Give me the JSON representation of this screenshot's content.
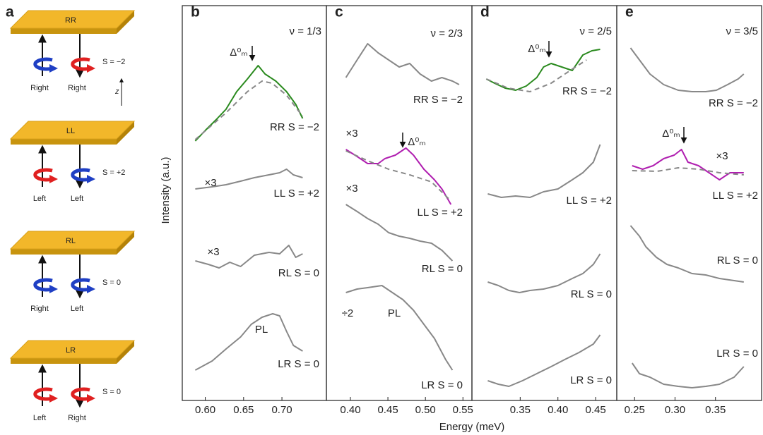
{
  "diagram": {
    "panel_label": "a",
    "z_label": "z",
    "plates": [
      {
        "label": "RR",
        "s": "S = −2",
        "arrows": [
          {
            "label": "Right",
            "color": "#1f3fc4"
          },
          {
            "label": "Right",
            "color": "#e02020"
          }
        ]
      },
      {
        "label": "LL",
        "s": "S = +2",
        "arrows": [
          {
            "label": "Left",
            "color": "#e02020"
          },
          {
            "label": "Left",
            "color": "#1f3fc4"
          }
        ]
      },
      {
        "label": "RL",
        "s": "S = 0",
        "arrows": [
          {
            "label": "Right",
            "color": "#1f3fc4"
          },
          {
            "label": "Left",
            "color": "#1f3fc4"
          }
        ]
      },
      {
        "label": "LR",
        "s": "S = 0",
        "arrows": [
          {
            "label": "Left",
            "color": "#e02020"
          },
          {
            "label": "Right",
            "color": "#e02020"
          }
        ]
      }
    ]
  },
  "figure": {
    "xlabel": "Energy (meV)",
    "ylabel": "Intensity (a.u.)"
  },
  "chart_data": [
    {
      "type": "line",
      "panel_label": "b",
      "xlim": [
        0.57,
        0.758
      ],
      "ylim": [
        0,
        56
      ],
      "xticks": [
        {
          "value": 0.6,
          "label": "0.60"
        },
        {
          "value": 0.65,
          "label": "0.65"
        },
        {
          "value": 0.7,
          "label": "0.70"
        }
      ],
      "annotations": [
        "ν = 1/3",
        "Δ⁰ₘ",
        "×3",
        "×3",
        "PL"
      ],
      "series": [
        {
          "name": "RR S = −2",
          "color": "#2a8a1e",
          "x": [
            0.587,
            0.6,
            0.614,
            0.627,
            0.641,
            0.655,
            0.669,
            0.678,
            0.692,
            0.706,
            0.718,
            0.727
          ],
          "values": [
            36.8,
            38.3,
            39.8,
            41.3,
            43.8,
            45.6,
            47.5,
            46.3,
            45.3,
            43.8,
            42.0,
            40.0
          ]
        },
        {
          "color": "#888888",
          "dashed": true,
          "x": [
            0.587,
            0.627,
            0.655,
            0.674,
            0.687,
            0.706,
            0.727
          ],
          "values": [
            37.0,
            40.8,
            43.8,
            45.3,
            45.0,
            43.3,
            40.3
          ]
        },
        {
          "name": "LL S = +2",
          "color": "#888888",
          "x": [
            0.587,
            0.609,
            0.627,
            0.646,
            0.664,
            0.683,
            0.697,
            0.706,
            0.715,
            0.727
          ],
          "values": [
            30.0,
            30.3,
            30.6,
            31.1,
            31.6,
            32.0,
            32.3,
            32.8,
            32.0,
            31.6
          ]
        },
        {
          "name": "RL S = 0",
          "color": "#888888",
          "x": [
            0.587,
            0.604,
            0.618,
            0.632,
            0.646,
            0.664,
            0.683,
            0.697,
            0.709,
            0.718,
            0.727
          ],
          "values": [
            19.8,
            19.3,
            18.8,
            19.6,
            19.0,
            20.6,
            21.0,
            20.8,
            22.0,
            20.3,
            20.8
          ]
        },
        {
          "name": "LR S = 0",
          "color": "#888888",
          "x": [
            0.587,
            0.609,
            0.627,
            0.646,
            0.66,
            0.674,
            0.688,
            0.697,
            0.706,
            0.715,
            0.727
          ],
          "values": [
            4.3,
            5.6,
            7.3,
            9.0,
            10.8,
            11.8,
            12.3,
            12.0,
            9.8,
            7.8,
            7.0
          ]
        }
      ]
    },
    {
      "type": "line",
      "panel_label": "c",
      "xlim": [
        0.368,
        0.562
      ],
      "ylim": [
        0,
        56
      ],
      "xticks": [
        {
          "value": 0.4,
          "label": "0.40"
        },
        {
          "value": 0.45,
          "label": "0.45"
        },
        {
          "value": 0.5,
          "label": "0.50"
        },
        {
          "value": 0.55,
          "label": "0.55"
        }
      ],
      "annotations": [
        "ν = 2/3",
        "×3",
        "Δ⁰ₘ",
        "×3",
        "÷2",
        "PL"
      ],
      "series": [
        {
          "name": "RR S = −2",
          "color": "#888888",
          "x": [
            0.394,
            0.409,
            0.423,
            0.437,
            0.451,
            0.465,
            0.479,
            0.493,
            0.508,
            0.522,
            0.536,
            0.545
          ],
          "values": [
            45.8,
            48.3,
            50.6,
            49.3,
            48.3,
            47.3,
            47.8,
            46.3,
            45.3,
            45.8,
            45.3,
            44.8
          ]
        },
        {
          "name": "LL S = +2",
          "color": "#b01fb0",
          "x": [
            0.394,
            0.409,
            0.423,
            0.437,
            0.446,
            0.46,
            0.474,
            0.484,
            0.498,
            0.512,
            0.522,
            0.534
          ],
          "values": [
            35.6,
            34.6,
            33.6,
            33.6,
            34.3,
            34.8,
            35.8,
            34.8,
            32.8,
            31.3,
            30.0,
            27.8
          ]
        },
        {
          "color": "#888888",
          "dashed": true,
          "x": [
            0.394,
            0.423,
            0.451,
            0.479,
            0.508,
            0.534
          ],
          "values": [
            35.4,
            34.0,
            32.8,
            32.0,
            31.0,
            28.3
          ]
        },
        {
          "name": "RL S = 0",
          "color": "#888888",
          "x": [
            0.394,
            0.409,
            0.423,
            0.437,
            0.451,
            0.465,
            0.479,
            0.493,
            0.508,
            0.522,
            0.536
          ],
          "values": [
            27.8,
            26.8,
            25.8,
            25.0,
            23.8,
            23.3,
            23.0,
            22.6,
            22.3,
            21.3,
            19.8
          ]
        },
        {
          "name": "LR S = 0",
          "color": "#888888",
          "x": [
            0.394,
            0.409,
            0.423,
            0.442,
            0.456,
            0.47,
            0.484,
            0.498,
            0.512,
            0.527,
            0.536
          ],
          "values": [
            15.3,
            15.8,
            16.0,
            16.3,
            15.3,
            14.3,
            12.8,
            10.8,
            8.8,
            5.8,
            4.3
          ]
        }
      ]
    },
    {
      "type": "line",
      "panel_label": "d",
      "xlim": [
        0.286,
        0.478
      ],
      "ylim": [
        0,
        56
      ],
      "xticks": [
        0.35,
        {
          "value": 0.4,
          "label": "0.40"
        },
        0.45
      ],
      "annotations": [
        "ν = 2/5",
        "Δ⁰ₘ"
      ],
      "series": [
        {
          "name": "RR S = −2",
          "color": "#2a8a1e",
          "x": [
            0.305,
            0.316,
            0.33,
            0.344,
            0.358,
            0.372,
            0.381,
            0.391,
            0.405,
            0.419,
            0.433,
            0.445,
            0.456
          ],
          "values": [
            45.6,
            45.0,
            44.3,
            44.0,
            44.6,
            45.8,
            47.3,
            47.8,
            47.3,
            46.8,
            49.0,
            49.6,
            49.8
          ]
        },
        {
          "color": "#888888",
          "dashed": true,
          "x": [
            0.305,
            0.334,
            0.363,
            0.391,
            0.419,
            0.438
          ],
          "values": [
            45.6,
            44.3,
            43.8,
            45.0,
            47.0,
            48.3
          ]
        },
        {
          "name": "LL S = +2",
          "color": "#888888",
          "x": [
            0.307,
            0.325,
            0.344,
            0.363,
            0.381,
            0.4,
            0.419,
            0.433,
            0.447,
            0.456
          ],
          "values": [
            29.3,
            28.8,
            29.0,
            28.8,
            29.6,
            30.0,
            31.3,
            32.3,
            33.8,
            36.3
          ]
        },
        {
          "name": "RL S = 0",
          "color": "#888888",
          "x": [
            0.307,
            0.321,
            0.335,
            0.349,
            0.363,
            0.381,
            0.4,
            0.419,
            0.433,
            0.447,
            0.456
          ],
          "values": [
            16.8,
            16.3,
            15.6,
            15.3,
            15.6,
            15.8,
            16.3,
            17.3,
            18.0,
            19.3,
            20.8
          ]
        },
        {
          "name": "LR S = 0",
          "color": "#888888",
          "x": [
            0.307,
            0.321,
            0.335,
            0.353,
            0.372,
            0.391,
            0.409,
            0.428,
            0.447,
            0.456
          ],
          "values": [
            2.8,
            2.3,
            2.0,
            2.8,
            3.8,
            4.8,
            5.8,
            6.8,
            8.0,
            9.3
          ]
        }
      ]
    },
    {
      "type": "line",
      "panel_label": "e",
      "xlim": [
        0.228,
        0.407
      ],
      "ylim": [
        0,
        56
      ],
      "xticks": [
        0.25,
        {
          "value": 0.3,
          "label": "0.30"
        },
        0.35
      ],
      "annotations": [
        "ν = 3/5",
        "Δ⁰ₘ",
        "×3"
      ],
      "series": [
        {
          "name": "RR S = −2",
          "color": "#888888",
          "x": [
            0.245,
            0.256,
            0.269,
            0.286,
            0.304,
            0.321,
            0.338,
            0.351,
            0.365,
            0.378,
            0.385
          ],
          "values": [
            50.0,
            48.3,
            46.3,
            44.8,
            44.0,
            43.8,
            43.8,
            44.0,
            44.8,
            45.6,
            46.3
          ]
        },
        {
          "name": "LL S = +2",
          "color": "#b01fb0",
          "x": [
            0.247,
            0.26,
            0.273,
            0.286,
            0.299,
            0.308,
            0.316,
            0.329,
            0.342,
            0.355,
            0.368,
            0.385
          ],
          "values": [
            33.3,
            32.8,
            33.3,
            34.3,
            34.8,
            35.6,
            33.8,
            33.3,
            32.3,
            31.3,
            32.3,
            32.3
          ]
        },
        {
          "color": "#888888",
          "dashed": true,
          "x": [
            0.247,
            0.278,
            0.304,
            0.329,
            0.355,
            0.385
          ],
          "values": [
            32.6,
            32.5,
            33.0,
            32.8,
            32.3,
            32.0
          ]
        },
        {
          "name": "RL S = 0",
          "color": "#888888",
          "x": [
            0.245,
            0.256,
            0.264,
            0.277,
            0.29,
            0.304,
            0.321,
            0.338,
            0.355,
            0.373,
            0.385
          ],
          "values": [
            24.8,
            23.3,
            21.8,
            20.3,
            19.3,
            18.8,
            18.0,
            17.8,
            17.3,
            17.0,
            16.8
          ]
        },
        {
          "name": "LR S = 0",
          "color": "#888888",
          "x": [
            0.247,
            0.256,
            0.269,
            0.286,
            0.304,
            0.321,
            0.338,
            0.355,
            0.373,
            0.385
          ],
          "values": [
            5.3,
            3.8,
            3.3,
            2.3,
            2.0,
            1.8,
            2.0,
            2.3,
            3.3,
            4.8
          ]
        }
      ]
    }
  ]
}
